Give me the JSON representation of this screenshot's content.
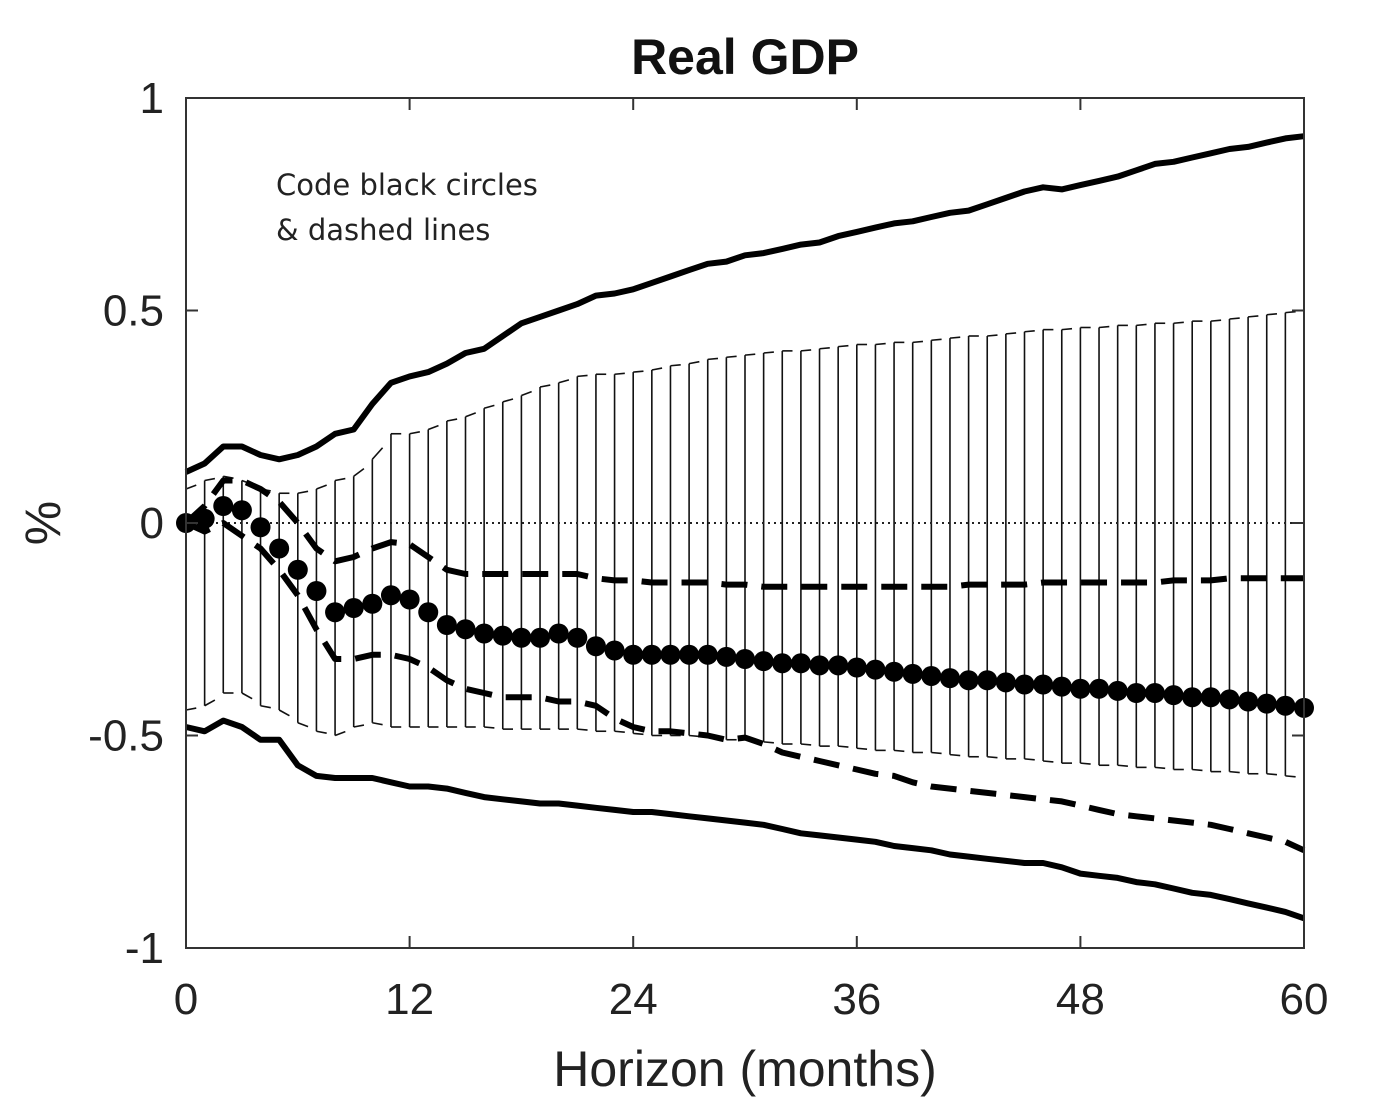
{
  "chart_data": {
    "type": "line",
    "title": "Real GDP",
    "xlabel": "Horizon (months)",
    "ylabel": "%",
    "xlim": [
      0,
      60
    ],
    "ylim": [
      -1,
      1
    ],
    "x_ticks": [
      0,
      12,
      24,
      36,
      48,
      60
    ],
    "y_ticks": [
      1,
      0.5,
      0,
      -0.5,
      -1
    ],
    "y_tick_labels": [
      "1",
      "0.5",
      "0",
      "-0.5",
      "-1"
    ],
    "grid": false,
    "legend": "none",
    "annotation": [
      "Code black circles",
      "& dashed lines"
    ],
    "x": [
      0,
      1,
      2,
      3,
      4,
      5,
      6,
      7,
      8,
      9,
      10,
      11,
      12,
      13,
      14,
      15,
      16,
      17,
      18,
      19,
      20,
      21,
      22,
      23,
      24,
      25,
      26,
      27,
      28,
      29,
      30,
      31,
      32,
      33,
      34,
      35,
      36,
      37,
      38,
      39,
      40,
      41,
      42,
      43,
      44,
      45,
      46,
      47,
      48,
      49,
      50,
      51,
      52,
      53,
      54,
      55,
      56,
      57,
      58,
      59,
      60
    ],
    "series": [
      {
        "style": "circles",
        "values": [
          0.0,
          0.01,
          0.04,
          0.03,
          -0.01,
          -0.06,
          -0.11,
          -0.16,
          -0.21,
          -0.2,
          -0.19,
          -0.17,
          -0.18,
          -0.21,
          -0.24,
          -0.25,
          -0.26,
          -0.265,
          -0.27,
          -0.27,
          -0.26,
          -0.27,
          -0.29,
          -0.3,
          -0.31,
          -0.31,
          -0.31,
          -0.31,
          -0.31,
          -0.315,
          -0.32,
          -0.325,
          -0.33,
          -0.33,
          -0.335,
          -0.335,
          -0.34,
          -0.345,
          -0.35,
          -0.355,
          -0.36,
          -0.365,
          -0.37,
          -0.37,
          -0.375,
          -0.38,
          -0.38,
          -0.385,
          -0.39,
          -0.39,
          -0.395,
          -0.4,
          -0.4,
          -0.405,
          -0.41,
          -0.41,
          -0.415,
          -0.42,
          -0.425,
          -0.43,
          -0.435
        ]
      },
      {
        "style": "dashed",
        "values": [
          0.0,
          0.04,
          0.1,
          0.1,
          0.08,
          0.05,
          0.0,
          -0.06,
          -0.09,
          -0.08,
          -0.06,
          -0.045,
          -0.05,
          -0.08,
          -0.11,
          -0.12,
          -0.12,
          -0.12,
          -0.12,
          -0.12,
          -0.12,
          -0.12,
          -0.13,
          -0.135,
          -0.135,
          -0.14,
          -0.14,
          -0.14,
          -0.14,
          -0.145,
          -0.145,
          -0.15,
          -0.15,
          -0.15,
          -0.15,
          -0.15,
          -0.15,
          -0.15,
          -0.15,
          -0.15,
          -0.15,
          -0.15,
          -0.145,
          -0.145,
          -0.145,
          -0.145,
          -0.14,
          -0.14,
          -0.14,
          -0.14,
          -0.14,
          -0.14,
          -0.14,
          -0.135,
          -0.135,
          -0.135,
          -0.13,
          -0.13,
          -0.13,
          -0.13,
          -0.13
        ]
      },
      {
        "style": "dashed",
        "values": [
          0.0,
          -0.02,
          0.0,
          -0.03,
          -0.06,
          -0.11,
          -0.17,
          -0.25,
          -0.32,
          -0.32,
          -0.31,
          -0.31,
          -0.32,
          -0.34,
          -0.37,
          -0.39,
          -0.4,
          -0.41,
          -0.41,
          -0.41,
          -0.42,
          -0.42,
          -0.43,
          -0.46,
          -0.48,
          -0.49,
          -0.49,
          -0.495,
          -0.5,
          -0.51,
          -0.505,
          -0.52,
          -0.54,
          -0.55,
          -0.56,
          -0.57,
          -0.58,
          -0.59,
          -0.595,
          -0.61,
          -0.62,
          -0.625,
          -0.63,
          -0.635,
          -0.64,
          -0.645,
          -0.65,
          -0.655,
          -0.665,
          -0.675,
          -0.685,
          -0.69,
          -0.695,
          -0.7,
          -0.705,
          -0.71,
          -0.72,
          -0.73,
          -0.74,
          -0.75,
          -0.77
        ]
      },
      {
        "style": "solid",
        "values": [
          0.12,
          0.14,
          0.18,
          0.18,
          0.16,
          0.15,
          0.16,
          0.18,
          0.21,
          0.22,
          0.28,
          0.33,
          0.345,
          0.355,
          0.375,
          0.4,
          0.41,
          0.44,
          0.47,
          0.485,
          0.5,
          0.515,
          0.535,
          0.54,
          0.55,
          0.565,
          0.58,
          0.595,
          0.61,
          0.615,
          0.63,
          0.635,
          0.645,
          0.655,
          0.66,
          0.675,
          0.685,
          0.695,
          0.705,
          0.71,
          0.72,
          0.73,
          0.735,
          0.75,
          0.765,
          0.78,
          0.79,
          0.785,
          0.795,
          0.805,
          0.815,
          0.83,
          0.845,
          0.85,
          0.86,
          0.87,
          0.88,
          0.885,
          0.895,
          0.905,
          0.91
        ]
      },
      {
        "style": "solid",
        "values": [
          -0.48,
          -0.49,
          -0.465,
          -0.48,
          -0.51,
          -0.51,
          -0.57,
          -0.595,
          -0.6,
          -0.6,
          -0.6,
          -0.61,
          -0.62,
          -0.62,
          -0.625,
          -0.635,
          -0.645,
          -0.65,
          -0.655,
          -0.66,
          -0.66,
          -0.665,
          -0.67,
          -0.675,
          -0.68,
          -0.68,
          -0.685,
          -0.69,
          -0.695,
          -0.7,
          -0.705,
          -0.71,
          -0.72,
          -0.73,
          -0.735,
          -0.74,
          -0.745,
          -0.75,
          -0.76,
          -0.765,
          -0.77,
          -0.78,
          -0.785,
          -0.79,
          -0.795,
          -0.8,
          -0.8,
          -0.81,
          -0.825,
          -0.83,
          -0.835,
          -0.845,
          -0.85,
          -0.86,
          -0.87,
          -0.875,
          -0.885,
          -0.895,
          -0.905,
          -0.915,
          -0.93
        ]
      },
      {
        "style": "band-upper",
        "values": [
          0.08,
          0.1,
          0.11,
          0.1,
          0.08,
          0.07,
          0.07,
          0.08,
          0.1,
          0.11,
          0.15,
          0.21,
          0.21,
          0.22,
          0.24,
          0.25,
          0.27,
          0.285,
          0.3,
          0.32,
          0.33,
          0.345,
          0.35,
          0.35,
          0.355,
          0.36,
          0.37,
          0.375,
          0.385,
          0.39,
          0.395,
          0.4,
          0.405,
          0.405,
          0.41,
          0.415,
          0.42,
          0.42,
          0.425,
          0.425,
          0.43,
          0.435,
          0.44,
          0.44,
          0.445,
          0.45,
          0.455,
          0.455,
          0.46,
          0.46,
          0.465,
          0.465,
          0.47,
          0.47,
          0.475,
          0.475,
          0.48,
          0.485,
          0.49,
          0.495,
          0.5
        ]
      },
      {
        "style": "band-lower",
        "values": [
          -0.44,
          -0.43,
          -0.4,
          -0.4,
          -0.43,
          -0.44,
          -0.47,
          -0.49,
          -0.5,
          -0.48,
          -0.47,
          -0.48,
          -0.48,
          -0.48,
          -0.48,
          -0.48,
          -0.48,
          -0.485,
          -0.485,
          -0.485,
          -0.485,
          -0.485,
          -0.49,
          -0.49,
          -0.495,
          -0.5,
          -0.5,
          -0.5,
          -0.505,
          -0.51,
          -0.51,
          -0.515,
          -0.52,
          -0.52,
          -0.525,
          -0.525,
          -0.53,
          -0.535,
          -0.535,
          -0.54,
          -0.54,
          -0.545,
          -0.55,
          -0.55,
          -0.555,
          -0.555,
          -0.56,
          -0.565,
          -0.565,
          -0.57,
          -0.57,
          -0.575,
          -0.575,
          -0.58,
          -0.58,
          -0.585,
          -0.585,
          -0.59,
          -0.59,
          -0.595,
          -0.6
        ]
      }
    ]
  }
}
